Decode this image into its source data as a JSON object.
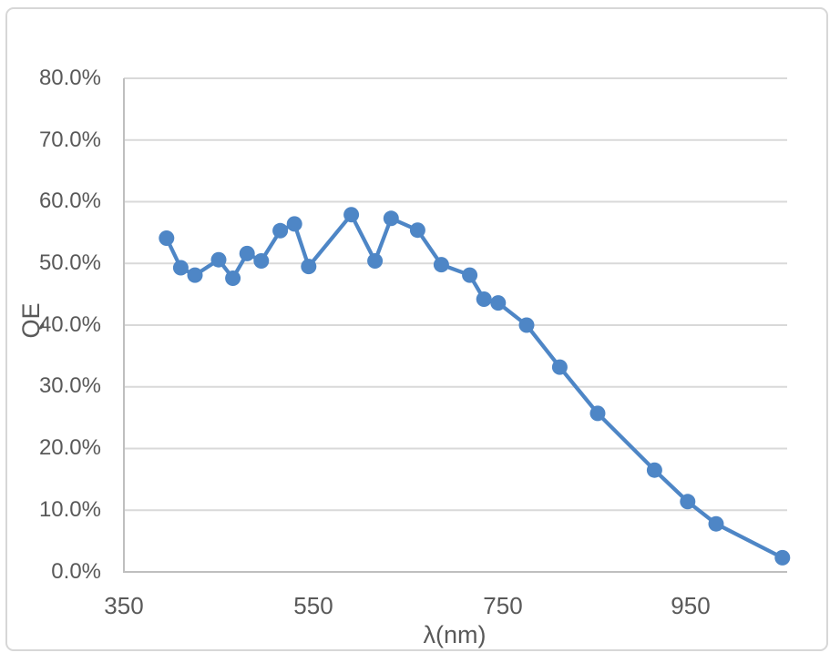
{
  "chart_data": {
    "type": "line",
    "title": "",
    "xlabel": "λ(nm)",
    "ylabel": "QE",
    "x": [
      395,
      410,
      425,
      450,
      465,
      480,
      495,
      515,
      530,
      545,
      590,
      615,
      632,
      660,
      685,
      715,
      730,
      745,
      775,
      810,
      850,
      910,
      945,
      975,
      1045
    ],
    "y": [
      54.1,
      49.3,
      48.1,
      50.6,
      47.6,
      51.6,
      50.4,
      55.3,
      56.4,
      49.5,
      57.9,
      50.4,
      57.3,
      55.4,
      49.8,
      48.1,
      44.2,
      43.6,
      40.0,
      33.2,
      25.7,
      16.5,
      11.4,
      7.8,
      2.3
    ],
    "y_unit": "percent",
    "xlim": [
      350,
      1050
    ],
    "ylim": [
      0,
      80
    ],
    "x_tick_values": [
      350,
      550,
      750,
      950
    ],
    "x_tick_labels": [
      "350",
      "550",
      "750",
      "950"
    ],
    "y_tick_step": 10,
    "y_tick_labels_top_to_bottom": [
      "80.0%",
      "70.0%",
      "60.0%",
      "50.0%",
      "40.0%",
      "30.0%",
      "20.0%",
      "10.0%",
      "0.0%"
    ],
    "grid": "horizontal-only",
    "legend": "none",
    "marker": "circle",
    "line_style": "straight-segments",
    "colors": {
      "series": "#4e86c6",
      "gridline": "#d9d9d9",
      "axis_line": "#bfbfbf",
      "label_text": "#595959",
      "frame_border": "#d7d7d7"
    }
  }
}
